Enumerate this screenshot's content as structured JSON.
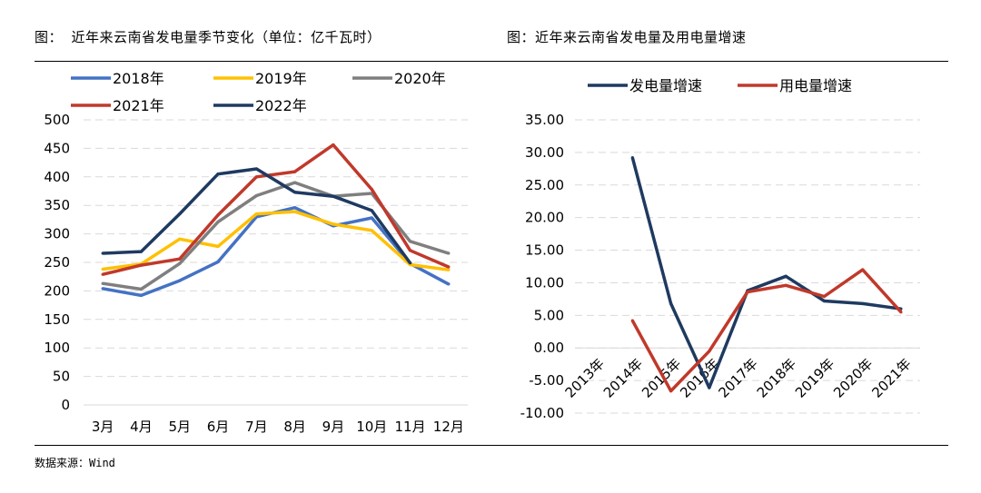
{
  "titles": {
    "left": "图： 近年来云南省发电量季节变化（单位：亿千瓦时）",
    "right": "图：近年来云南省发电量及用电量增速"
  },
  "source": "数据来源：Wind",
  "chart_data": [
    {
      "type": "line",
      "title": "近年来云南省发电量季节变化（单位：亿千瓦时）",
      "categories": [
        "3月",
        "4月",
        "5月",
        "6月",
        "7月",
        "8月",
        "9月",
        "10月",
        "11月",
        "12月"
      ],
      "ylim": [
        0,
        500
      ],
      "yticks": [
        0,
        50,
        100,
        150,
        200,
        250,
        300,
        350,
        400,
        450,
        500
      ],
      "grid": true,
      "legend_position": "top",
      "series": [
        {
          "name": "2018年",
          "color": "#4472C4",
          "values": [
            204,
            192,
            218,
            251,
            330,
            346,
            314,
            328,
            248,
            212
          ]
        },
        {
          "name": "2019年",
          "color": "#FFC000",
          "values": [
            238,
            247,
            291,
            278,
            335,
            339,
            317,
            306,
            246,
            237
          ]
        },
        {
          "name": "2020年",
          "color": "#7F7F7F",
          "values": [
            213,
            203,
            248,
            321,
            367,
            390,
            366,
            371,
            287,
            266
          ]
        },
        {
          "name": "2021年",
          "color": "#C0392B",
          "values": [
            229,
            245,
            256,
            333,
            400,
            409,
            456,
            378,
            271,
            242
          ]
        },
        {
          "name": "2022年",
          "color": "#1F3A60",
          "values": [
            266,
            269,
            335,
            405,
            414,
            373,
            366,
            341,
            249,
            null
          ]
        }
      ]
    },
    {
      "type": "line",
      "title": "近年来云南省发电量及用电量增速",
      "categories": [
        "2013年",
        "2014年",
        "2015年",
        "2016年",
        "2017年",
        "2018年",
        "2019年",
        "2020年",
        "2021年"
      ],
      "ylim": [
        -10,
        35
      ],
      "yticks": [
        "-10.00",
        "-5.00",
        "0.00",
        "5.00",
        "10.00",
        "15.00",
        "20.00",
        "25.00",
        "30.00",
        "35.00"
      ],
      "grid": true,
      "legend_position": "top",
      "series": [
        {
          "name": "发电量增速",
          "color": "#1F3A60",
          "values": [
            null,
            29.2,
            6.8,
            -6.1,
            8.8,
            11.0,
            7.2,
            6.8,
            6.0
          ]
        },
        {
          "name": "用电量增速",
          "color": "#C0392B",
          "values": [
            null,
            4.2,
            -6.6,
            -0.5,
            8.6,
            9.6,
            7.9,
            12.0,
            5.5
          ]
        }
      ]
    }
  ]
}
